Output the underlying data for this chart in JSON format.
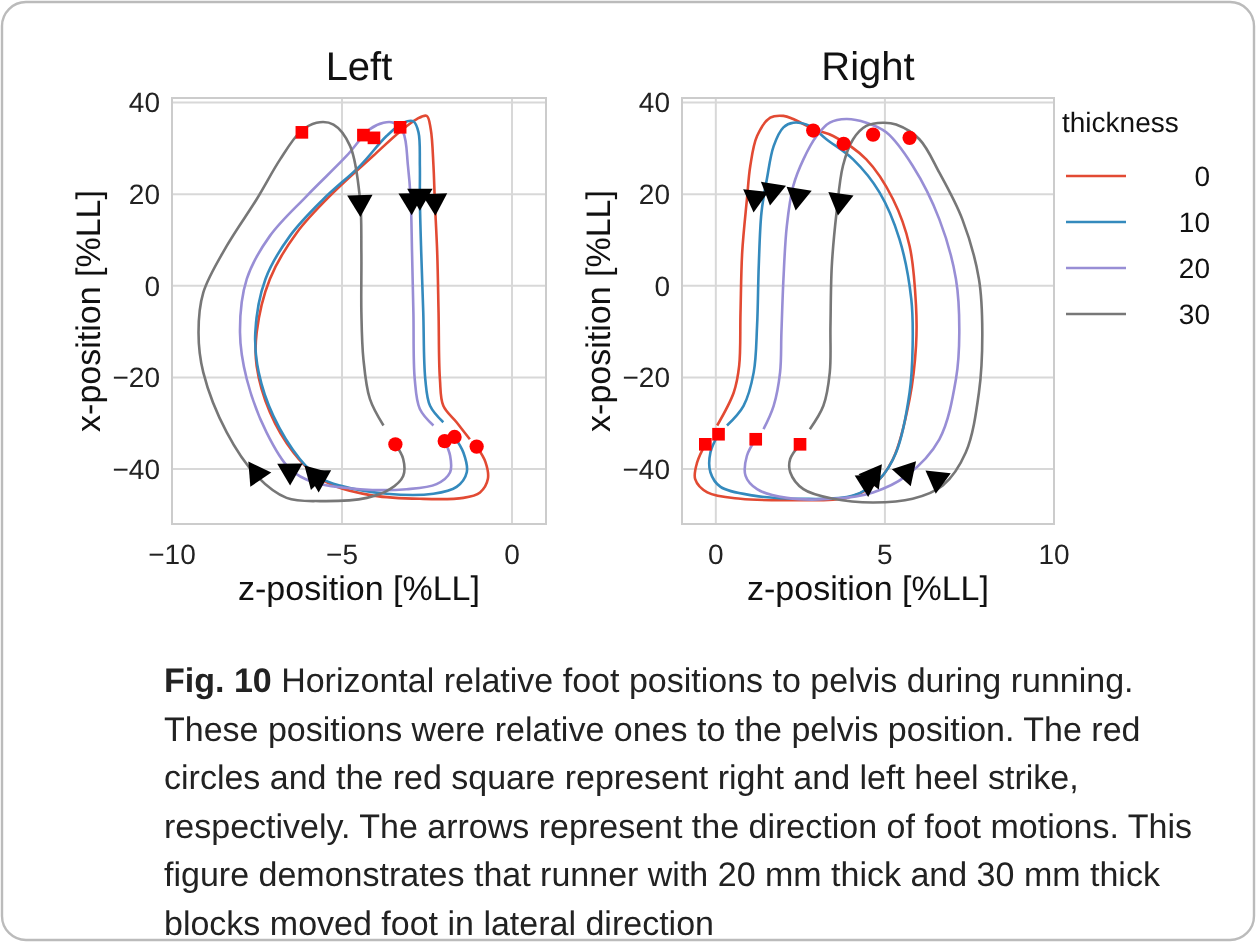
{
  "chart_data": [
    {
      "type": "line",
      "title": "Left",
      "xlabel": "z-position [%LL]",
      "ylabel": "x-position [%LL]",
      "xlim": [
        -10,
        1
      ],
      "xticks": [
        -10,
        -5,
        0
      ],
      "ylim": [
        -52,
        41
      ],
      "yticks": [
        -40,
        -20,
        0,
        20,
        40
      ],
      "grid": true,
      "legend": false,
      "line_style": "solid",
      "marker": "none",
      "series": [
        {
          "color": "#e24a33",
          "x": [
            -1.04,
            -0.78,
            -0.71,
            -0.94,
            -1.43,
            -2.71,
            -4.08,
            -5.25,
            -5.75,
            -6.43,
            -7.12,
            -7.51,
            -7.51,
            -7.12,
            -6.33,
            -5.25,
            -4.08,
            -3.29,
            -2.8,
            -2.51,
            -2.39,
            -2.31,
            -2.27,
            -2.2,
            -2.16,
            -2.12,
            -2.02,
            -1.63,
            -1.24
          ],
          "values": [
            -35.1,
            -38.5,
            -42.2,
            -45.1,
            -46.3,
            -46.5,
            -45.8,
            -43.6,
            -41.5,
            -36.4,
            -27.6,
            -17.5,
            -10.2,
            1.5,
            11.6,
            20.4,
            28.4,
            33.7,
            36.4,
            37.1,
            34.2,
            26.2,
            18.5,
            7.3,
            -5.8,
            -20.4,
            -26.2,
            -29.8,
            -33.5
          ]
        },
        {
          "color": "#348abd",
          "x": [
            -1.69,
            -1.43,
            -1.33,
            -1.63,
            -2.31,
            -3.69,
            -5.06,
            -5.65,
            -6.24,
            -7.02,
            -7.45,
            -7.55,
            -7.25,
            -6.53,
            -5.55,
            -4.47,
            -3.69,
            -3.2,
            -2.9,
            -2.75,
            -2.71,
            -2.71,
            -2.67,
            -2.61,
            -2.55,
            -2.41,
            -2.02
          ],
          "values": [
            -33.0,
            -36.4,
            -40.7,
            -43.9,
            -45.4,
            -45.4,
            -43.6,
            -41.9,
            -37.8,
            -28.4,
            -18.9,
            -10.2,
            1.5,
            10.9,
            18.9,
            26.2,
            32.7,
            35.6,
            35.9,
            33.5,
            26.2,
            18.9,
            7.3,
            -5.8,
            -20.4,
            -26.2,
            -29.8
          ]
        },
        {
          "color": "#988ed5",
          "x": [
            -1.98,
            -1.82,
            -1.82,
            -2.22,
            -3.1,
            -4.47,
            -5.84,
            -6.53,
            -7.22,
            -7.8,
            -8.0,
            -7.8,
            -7.12,
            -6.04,
            -4.86,
            -4.18,
            -3.78,
            -3.49,
            -3.2,
            -3.06,
            -2.98,
            -2.94,
            -2.9,
            -2.86,
            -2.71,
            -2.31
          ],
          "values": [
            -33.9,
            -37.1,
            -40.7,
            -43.3,
            -44.4,
            -44.4,
            -42.9,
            -40.0,
            -32.0,
            -20.4,
            -10.2,
            1.5,
            10.9,
            19.6,
            28.4,
            34.2,
            35.6,
            35.6,
            33.5,
            26.2,
            18.9,
            7.3,
            -5.8,
            -20.4,
            -26.9,
            -30.5
          ]
        },
        {
          "color": "#777777",
          "x": [
            -3.43,
            -3.2,
            -3.2,
            -3.59,
            -4.27,
            -5.65,
            -6.63,
            -7.51,
            -8.39,
            -9.08,
            -9.22,
            -9.08,
            -8.39,
            -7.51,
            -6.82,
            -6.24,
            -5.75,
            -5.25,
            -4.76,
            -4.47,
            -4.43,
            -4.43,
            -4.37,
            -4.18,
            -3.78
          ],
          "values": [
            -34.6,
            -37.8,
            -41.5,
            -44.4,
            -46.3,
            -47.0,
            -46.3,
            -41.5,
            -32.0,
            -18.9,
            -10.2,
            -1.5,
            8.7,
            18.9,
            27.6,
            33.5,
            35.6,
            35.2,
            30.5,
            18.9,
            7.3,
            -5.8,
            -16.0,
            -24.7,
            -30.5
          ]
        },
        {
          "type": "scatter",
          "marker": "square",
          "color": "#ff0000",
          "x": [
            -6.18,
            -4.37,
            -4.06,
            -3.29
          ],
          "values": [
            33.5,
            32.9,
            32.3,
            34.6
          ]
        },
        {
          "type": "scatter",
          "marker": "circle",
          "color": "#ff0000",
          "x": [
            -3.43,
            -1.98,
            -1.69,
            -1.04
          ],
          "values": [
            -34.6,
            -33.9,
            -33.0,
            -35.1
          ]
        },
        {
          "type": "scatter",
          "marker": "triangle",
          "color": "#000000",
          "x": [
            -4.47,
            -2.96,
            -2.71,
            -2.27,
            -7.51,
            -6.53,
            -5.8,
            -5.69
          ],
          "values": [
            18.2,
            18.6,
            19.6,
            18.5,
            -41.0,
            -40.4,
            -41.5,
            -41.9
          ]
        }
      ]
    },
    {
      "type": "line",
      "title": "Right",
      "xlabel": "z-position [%LL]",
      "ylabel": "x-position [%LL]",
      "xlim": [
        -1,
        10
      ],
      "xticks": [
        0,
        5,
        10
      ],
      "ylim": [
        -52,
        41
      ],
      "yticks": [
        -40,
        -20,
        0,
        20,
        40
      ],
      "grid": true,
      "legend": "right",
      "legend_title": "thickness",
      "line_style": "solid",
      "marker": "none",
      "series": [
        {
          "name": "0",
          "color": "#e24a33",
          "x": [
            -0.31,
            -0.55,
            -0.61,
            -0.25,
            0.73,
            2.29,
            3.86,
            4.65,
            5.24,
            5.73,
            5.92,
            5.92,
            5.73,
            5.24,
            4.45,
            3.47,
            2.88,
            2.29,
            2.0,
            1.61,
            1.22,
            1.02,
            0.92,
            0.78,
            0.73,
            0.69,
            0.53,
            0.04
          ],
          "values": [
            -34.6,
            -38.5,
            -42.2,
            -45.1,
            -46.5,
            -46.8,
            -46.3,
            -43.6,
            -37.8,
            -24.7,
            -13.1,
            -4.4,
            8.7,
            18.9,
            27.6,
            32.7,
            34.2,
            36.4,
            37.1,
            36.7,
            32.7,
            26.2,
            18.9,
            7.3,
            -5.8,
            -17.5,
            -23.3,
            -30.5
          ]
        },
        {
          "name": "10",
          "color": "#348abd",
          "x": [
            0.08,
            -0.16,
            -0.16,
            0.14,
            1.12,
            2.49,
            4.06,
            4.84,
            5.33,
            5.73,
            5.82,
            5.78,
            5.43,
            4.84,
            4.06,
            3.27,
            2.78,
            2.29,
            2.0,
            1.71,
            1.51,
            1.35,
            1.27,
            1.22,
            1.12,
            0.82,
            0.33
          ],
          "values": [
            -32.4,
            -36.4,
            -40.7,
            -43.9,
            -45.8,
            -46.5,
            -45.8,
            -42.2,
            -36.4,
            -23.3,
            -13.1,
            -2.9,
            10.2,
            20.4,
            27.6,
            32.0,
            34.9,
            35.6,
            34.6,
            30.5,
            23.3,
            16.0,
            4.4,
            -8.7,
            -18.9,
            -26.2,
            -30.5
          ]
        },
        {
          "name": "20",
          "color": "#988ed5",
          "x": [
            1.18,
            0.92,
            0.88,
            1.22,
            2.1,
            3.47,
            4.65,
            5.63,
            6.61,
            7.1,
            7.2,
            7.1,
            6.61,
            5.82,
            5.04,
            4.45,
            3.86,
            3.37,
            2.98,
            2.59,
            2.29,
            2.1,
            2.0,
            1.94,
            1.9,
            1.71,
            1.41
          ],
          "values": [
            -33.5,
            -37.1,
            -41.5,
            -44.4,
            -46.3,
            -46.5,
            -45.1,
            -41.5,
            -33.5,
            -20.4,
            -10.2,
            1.5,
            14.5,
            26.2,
            33.5,
            35.6,
            36.4,
            35.6,
            32.7,
            27.6,
            21.8,
            13.1,
            1.5,
            -10.2,
            -18.9,
            -26.2,
            -31.3
          ]
        },
        {
          "name": "30",
          "color": "#777777",
          "x": [
            2.49,
            2.2,
            2.2,
            2.59,
            3.47,
            4.65,
            5.82,
            6.71,
            7.39,
            7.78,
            7.88,
            7.78,
            7.29,
            6.61,
            6.02,
            5.33,
            4.94,
            4.45,
            4.06,
            3.76,
            3.57,
            3.43,
            3.39,
            3.37,
            3.18,
            2.78
          ],
          "values": [
            -34.6,
            -37.8,
            -40.7,
            -44.4,
            -46.5,
            -47.3,
            -46.5,
            -43.6,
            -36.4,
            -23.3,
            -10.2,
            1.5,
            14.5,
            24.7,
            32.0,
            35.2,
            35.6,
            34.9,
            32.0,
            26.2,
            16.0,
            4.4,
            -8.7,
            -18.9,
            -26.2,
            -31.3
          ]
        },
        {
          "type": "scatter",
          "marker": "square",
          "color": "#ff0000",
          "x": [
            -0.31,
            0.08,
            1.18,
            2.49
          ],
          "values": [
            -34.6,
            -32.4,
            -33.5,
            -34.6
          ]
        },
        {
          "type": "scatter",
          "marker": "circle",
          "color": "#ff0000",
          "x": [
            2.88,
            3.78,
            4.65,
            5.73
          ],
          "values": [
            33.9,
            31.0,
            33.0,
            32.3
          ]
        },
        {
          "type": "scatter",
          "marker": "triangle",
          "color": "#000000",
          "x": [
            1.16,
            1.67,
            2.43,
            3.67,
            4.49,
            4.65,
            5.63,
            6.55
          ],
          "values": [
            19.2,
            20.7,
            19.6,
            18.5,
            -42.9,
            -41.5,
            -40.7,
            -42.2
          ]
        }
      ],
      "annotations": [
        "Fig. 10",
        "Horizontal relative foot positions to pelvis during running. These positions were relative ones to the pelvis position. The red circles and the red square represent right and left heel strike, respectively. The arrows represent the direction of foot motions. This figure demonstrates that runner with 20 mm thick and 30 mm thick blocks moved foot in lateral direction"
      ]
    }
  ]
}
